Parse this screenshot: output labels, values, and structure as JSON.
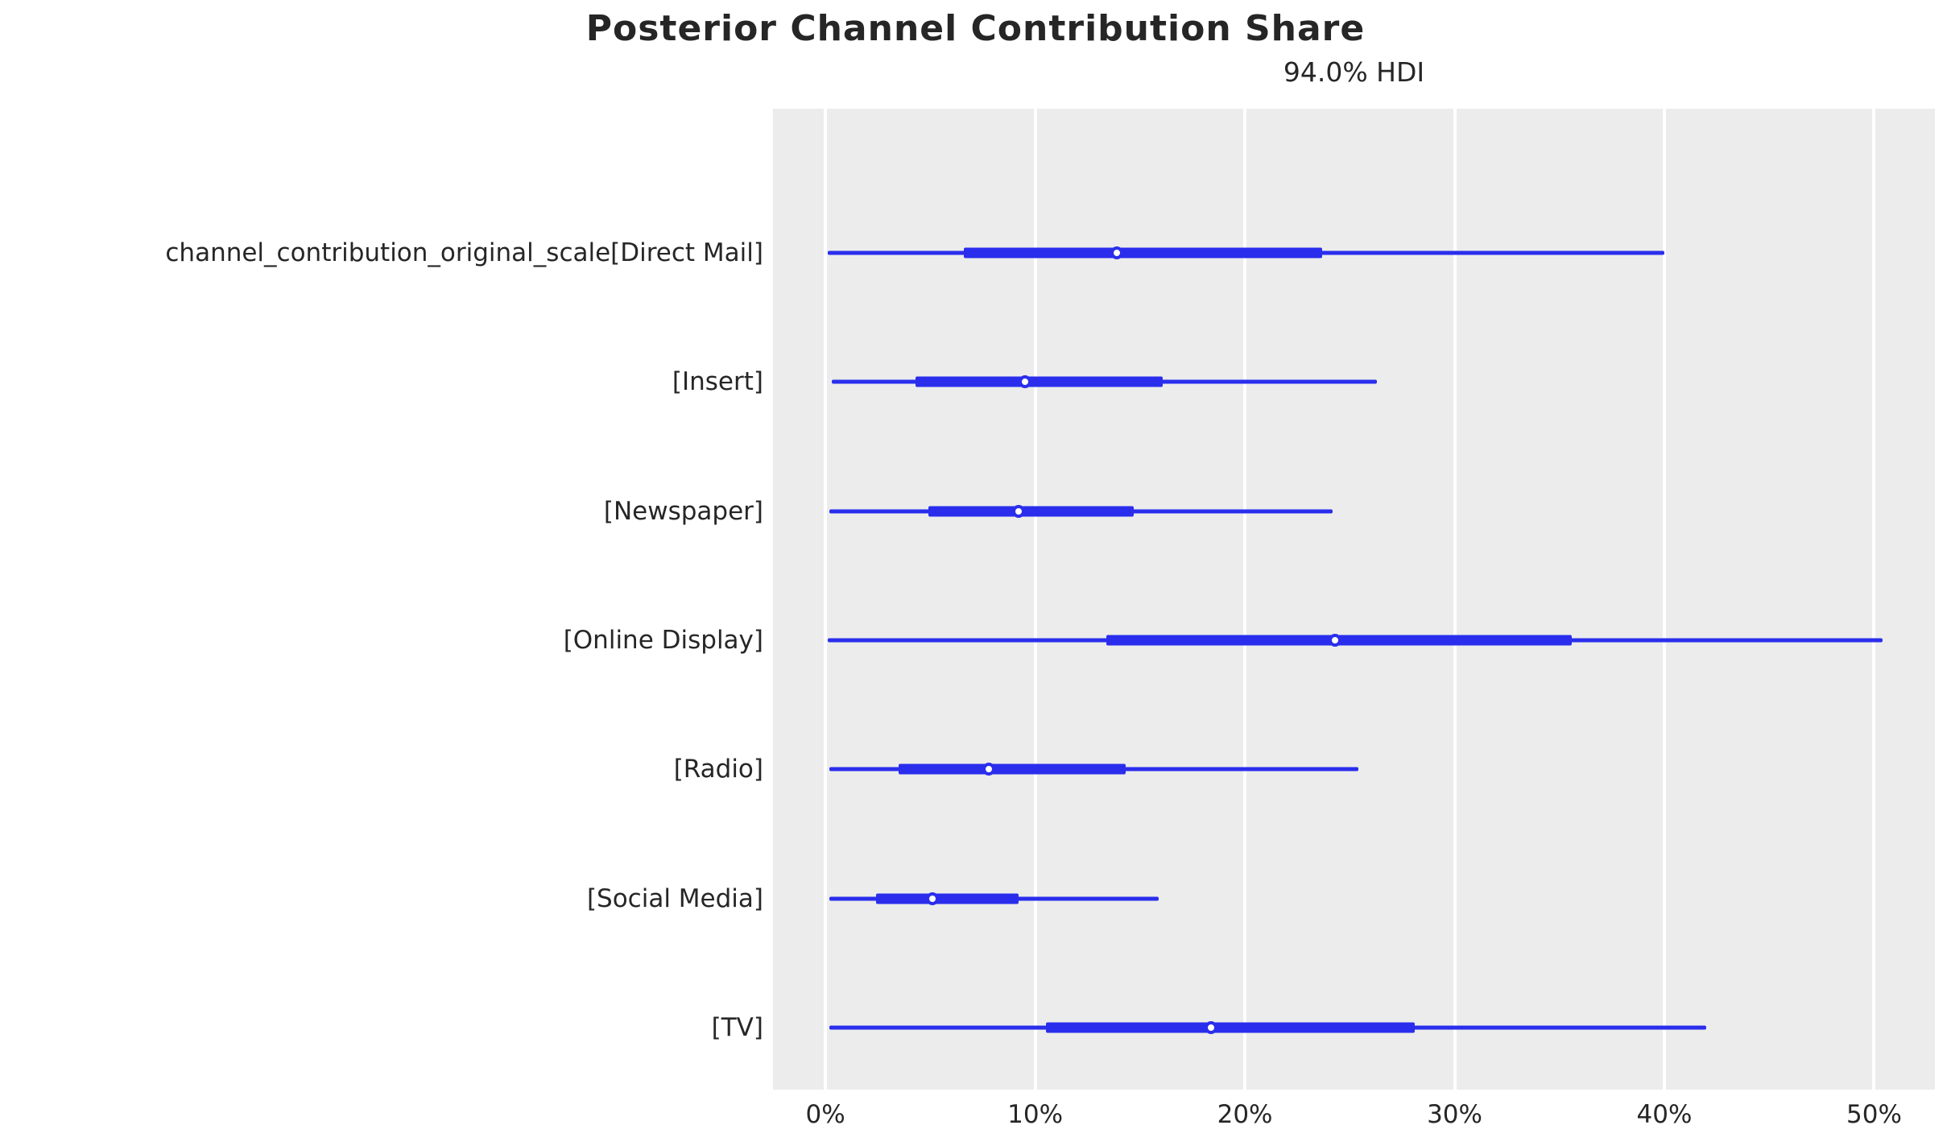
{
  "chart_data": {
    "type": "forest",
    "title": "Posterior Channel Contribution Share",
    "subtitle": "94.0% HDI",
    "xlabel": "",
    "ylabel": "",
    "x_tick_labels": [
      "0%",
      "10%",
      "20%",
      "30%",
      "40%",
      "50%"
    ],
    "x_tick_values": [
      0,
      10,
      20,
      30,
      40,
      50
    ],
    "xlim": [
      -2.5,
      52.9
    ],
    "grid": "vertical-white",
    "legend": "none",
    "series": [
      {
        "label": "channel_contribution_original_scale[Direct Mail]",
        "hdi_94": [
          0.1,
          40.0
        ],
        "interquartile": [
          6.6,
          23.7
        ],
        "median": 13.9
      },
      {
        "label": "[Insert]",
        "hdi_94": [
          0.3,
          26.3
        ],
        "interquartile": [
          4.3,
          16.1
        ],
        "median": 9.5
      },
      {
        "label": "[Newspaper]",
        "hdi_94": [
          0.2,
          24.2
        ],
        "interquartile": [
          4.9,
          14.7
        ],
        "median": 9.2
      },
      {
        "label": "[Online Display]",
        "hdi_94": [
          0.1,
          50.4
        ],
        "interquartile": [
          13.4,
          35.6
        ],
        "median": 24.3
      },
      {
        "label": "[Radio]",
        "hdi_94": [
          0.2,
          25.4
        ],
        "interquartile": [
          3.5,
          14.3
        ],
        "median": 7.8
      },
      {
        "label": "[Social Media]",
        "hdi_94": [
          0.2,
          15.9
        ],
        "interquartile": [
          2.4,
          9.2
        ],
        "median": 5.1
      },
      {
        "label": "[TV]",
        "hdi_94": [
          0.2,
          42.0
        ],
        "interquartile": [
          10.5,
          28.1
        ],
        "median": 18.4
      }
    ],
    "colors": {
      "interval_line": "#2a2eec",
      "median_marker_fill": "#ffffff",
      "plot_background": "#ececec",
      "gridline": "#ffffff",
      "text": "#262626",
      "figure_background": "#ffffff"
    }
  }
}
